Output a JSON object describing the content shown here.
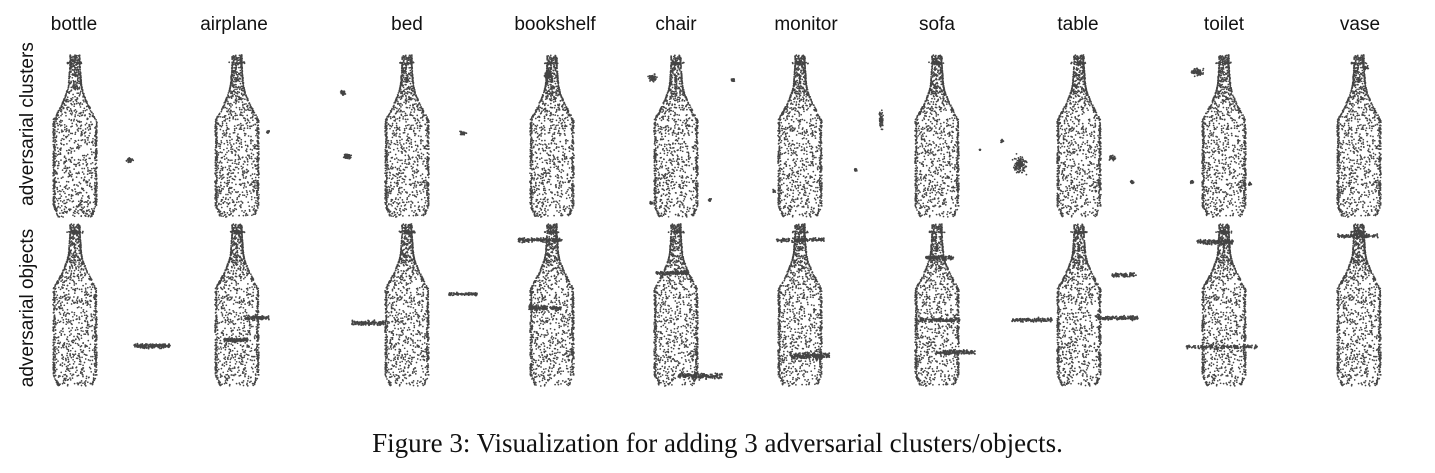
{
  "columns": [
    "bottle",
    "airplane",
    "bed",
    "bookshelf",
    "chair",
    "monitor",
    "sofa",
    "table",
    "toilet",
    "vase"
  ],
  "rows": [
    "adversarial clusters",
    "adversarial objects"
  ],
  "caption": "Figure 3: Visualization for adding 3 adversarial clusters/objects.",
  "colors": {
    "points": "#444444",
    "text": "#111111"
  }
}
